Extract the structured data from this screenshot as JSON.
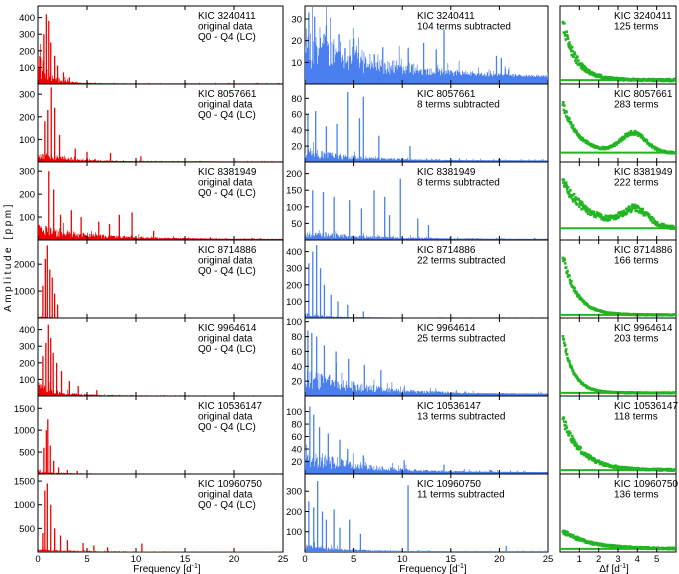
{
  "chart_data": {
    "type": "panel-grid",
    "y_axis_label": "Amplitude [ppm]",
    "column_colors": [
      "#ee0000",
      "#4a7ff0",
      "#22b522"
    ],
    "columns": [
      {
        "name": "original",
        "xlabel": "Frequency [d",
        "xlabel_sup": "-1",
        "xlabel_end": "]",
        "xlim": [
          0,
          25
        ],
        "xticks": [
          0,
          5,
          10,
          15,
          20,
          25
        ],
        "plot_type": "spectrum"
      },
      {
        "name": "prewhitened",
        "xlabel": "Frequency [d",
        "xlabel_sup": "-1",
        "xlabel_end": "]",
        "xlim": [
          0,
          25
        ],
        "xticks": [
          0,
          5,
          10,
          15,
          20,
          25
        ],
        "plot_type": "spectrum"
      },
      {
        "name": "spacing",
        "xlabel": "Δf [d",
        "xlabel_sup": "-1",
        "xlabel_end": "]",
        "xlim": [
          0,
          6
        ],
        "xticks": [
          1,
          2,
          3,
          4,
          5
        ],
        "plot_type": "scatter"
      }
    ],
    "rows": [
      {
        "star": "KIC 3240411",
        "original": {
          "lines": [
            "original data",
            "Q0 - Q4 (LC)"
          ],
          "ylim": [
            0,
            470
          ],
          "yticks": [
            100,
            200,
            300,
            400
          ],
          "peaks": [
            [
              0.6,
              300
            ],
            [
              0.85,
              420
            ],
            [
              1.1,
              380
            ],
            [
              1.3,
              250
            ],
            [
              1.7,
              170
            ],
            [
              2.0,
              110
            ],
            [
              2.6,
              70
            ],
            [
              3.2,
              40
            ]
          ],
          "envelope": {
            "height": 180,
            "decay": 1.2,
            "floor": 4
          }
        },
        "prewhitened": {
          "lines": [
            "104 terms subtracted"
          ],
          "ylim": [
            0,
            36
          ],
          "yticks": [
            10,
            20,
            30
          ],
          "peaks": [
            [
              0.4,
              33
            ],
            [
              1.0,
              31
            ],
            [
              2.2,
              27
            ],
            [
              3.5,
              23
            ],
            [
              5.0,
              21
            ],
            [
              8.0,
              17
            ],
            [
              12.2,
              19
            ],
            [
              13.5,
              16
            ],
            [
              14.3,
              25
            ],
            [
              19.7,
              13
            ],
            [
              20.2,
              12
            ]
          ],
          "envelope": {
            "height": 22,
            "decay": 8,
            "floor": 3
          }
        },
        "spacing": {
          "lines": [
            "125 terms"
          ],
          "profile": {
            "peak": 0.9,
            "decay": 0.7,
            "bump_pos": 3.6,
            "bump_h": 0.0,
            "base": 0.05,
            "scatter": 0.13
          }
        }
      },
      {
        "star": "KIC 8057661",
        "original": {
          "lines": [
            "original data",
            "Q0 - Q4 (LC)"
          ],
          "ylim": [
            0,
            345
          ],
          "yticks": [
            100,
            200,
            300
          ],
          "peaks": [
            [
              0.7,
              180
            ],
            [
              1.0,
              230
            ],
            [
              1.35,
              330
            ],
            [
              1.7,
              240
            ],
            [
              2.2,
              120
            ],
            [
              3.8,
              60
            ],
            [
              5.0,
              45
            ],
            [
              7.4,
              40
            ],
            [
              10.5,
              25
            ]
          ],
          "envelope": {
            "height": 50,
            "decay": 2.5,
            "floor": 3
          }
        },
        "prewhitened": {
          "lines": [
            "8 terms subtracted"
          ],
          "ylim": [
            0,
            98
          ],
          "yticks": [
            20,
            40,
            60,
            80
          ],
          "peaks": [
            [
              0.3,
              60
            ],
            [
              1.1,
              64
            ],
            [
              2.2,
              45
            ],
            [
              3.3,
              48
            ],
            [
              4.4,
              88
            ],
            [
              5.6,
              55
            ],
            [
              6.0,
              82
            ],
            [
              7.6,
              33
            ],
            [
              10.8,
              20
            ]
          ],
          "envelope": {
            "height": 15,
            "decay": 5,
            "floor": 2
          }
        },
        "spacing": {
          "lines": [
            "283 terms"
          ],
          "profile": {
            "peak": 0.75,
            "decay": 0.8,
            "bump_pos": 3.8,
            "bump_h": 0.25,
            "base": 0.12,
            "scatter": 0.06
          }
        }
      },
      {
        "star": "KIC 8381949",
        "original": {
          "lines": [
            "original data",
            "Q0 - Q4 (LC)"
          ],
          "ylim": [
            0,
            340
          ],
          "yticks": [
            100,
            200,
            300
          ],
          "peaks": [
            [
              1.1,
              300
            ],
            [
              1.6,
              220
            ],
            [
              2.3,
              110
            ],
            [
              3.4,
              130
            ],
            [
              4.4,
              100
            ],
            [
              6.2,
              80
            ],
            [
              7.3,
              70
            ],
            [
              8.3,
              110
            ],
            [
              9.6,
              120
            ],
            [
              11.8,
              40
            ]
          ],
          "envelope": {
            "height": 55,
            "decay": 6,
            "floor": 4
          }
        },
        "prewhitened": {
          "lines": [
            "8 terms subtracted"
          ],
          "ylim": [
            0,
            235
          ],
          "yticks": [
            50,
            100,
            150,
            200
          ],
          "peaks": [
            [
              0.8,
              150
            ],
            [
              1.9,
              145
            ],
            [
              3.0,
              130
            ],
            [
              4.6,
              120
            ],
            [
              5.8,
              95
            ],
            [
              7.1,
              150
            ],
            [
              8.2,
              130
            ],
            [
              8.7,
              75
            ],
            [
              9.8,
              185
            ],
            [
              11.6,
              65
            ],
            [
              12.7,
              45
            ]
          ],
          "envelope": {
            "height": 22,
            "decay": 7,
            "floor": 3
          }
        },
        "spacing": {
          "lines": [
            "222 terms"
          ],
          "profile": {
            "peak": 0.65,
            "decay": 1.4,
            "bump_pos": 3.9,
            "bump_h": 0.22,
            "base": 0.15,
            "scatter": 0.1
          }
        }
      },
      {
        "star": "KIC 8714886",
        "original": {
          "lines": [
            "original data",
            "Q0 - Q4 (LC)"
          ],
          "ylim": [
            0,
            2900
          ],
          "yticks": [
            1000,
            2000
          ],
          "peaks": [
            [
              0.5,
              1200
            ],
            [
              0.75,
              2200
            ],
            [
              0.95,
              2700
            ],
            [
              1.2,
              1800
            ],
            [
              1.45,
              1500
            ],
            [
              1.7,
              900
            ],
            [
              2.0,
              500
            ]
          ],
          "envelope": {
            "height": 80,
            "decay": 1.0,
            "floor": 10
          }
        },
        "prewhitened": {
          "lines": [
            "22 terms subtracted"
          ],
          "ylim": [
            0,
            470
          ],
          "yticks": [
            100,
            200,
            300,
            400
          ],
          "peaks": [
            [
              0.4,
              330
            ],
            [
              0.8,
              400
            ],
            [
              1.2,
              440
            ],
            [
              1.6,
              300
            ],
            [
              2.0,
              200
            ],
            [
              2.7,
              140
            ],
            [
              3.4,
              100
            ],
            [
              4.4,
              80
            ],
            [
              6.0,
              40
            ]
          ],
          "envelope": {
            "height": 30,
            "decay": 2.0,
            "floor": 3
          }
        },
        "spacing": {
          "lines": [
            "166 terms"
          ],
          "profile": {
            "peak": 0.95,
            "decay": 0.7,
            "bump_pos": 3.5,
            "bump_h": 0.0,
            "base": 0.04,
            "scatter": 0.06
          }
        }
      },
      {
        "star": "KIC 9964614",
        "original": {
          "lines": [
            "original data",
            "Q0 - Q4 (LC)"
          ],
          "ylim": [
            0,
            470
          ],
          "yticks": [
            100,
            200,
            300,
            400
          ],
          "peaks": [
            [
              0.5,
              240
            ],
            [
              0.8,
              320
            ],
            [
              1.05,
              430
            ],
            [
              1.3,
              350
            ],
            [
              1.55,
              260
            ],
            [
              1.9,
              200
            ],
            [
              2.4,
              150
            ],
            [
              3.2,
              90
            ],
            [
              4.1,
              60
            ],
            [
              6.0,
              35
            ]
          ],
          "envelope": {
            "height": 70,
            "decay": 2.2,
            "floor": 3
          }
        },
        "prewhitened": {
          "lines": [
            "25 terms subtracted"
          ],
          "ylim": [
            0,
            105
          ],
          "yticks": [
            20,
            40,
            60,
            80,
            100
          ],
          "peaks": [
            [
              0.3,
              88
            ],
            [
              0.7,
              85
            ],
            [
              1.2,
              80
            ],
            [
              2.0,
              68
            ],
            [
              3.2,
              60
            ],
            [
              4.5,
              50
            ],
            [
              6.1,
              42
            ],
            [
              7.8,
              35
            ]
          ],
          "envelope": {
            "height": 35,
            "decay": 5.5,
            "floor": 3
          }
        },
        "spacing": {
          "lines": [
            "203 terms"
          ],
          "profile": {
            "peak": 0.95,
            "decay": 0.55,
            "bump_pos": 3.5,
            "bump_h": 0.0,
            "base": 0.04,
            "scatter": 0.05
          }
        }
      },
      {
        "star": "KIC 10536147",
        "original": {
          "lines": [
            "original data",
            "Q0 - Q4 (LC)"
          ],
          "ylim": [
            0,
            1780
          ],
          "yticks": [
            500,
            1000,
            1500
          ],
          "peaks": [
            [
              0.6,
              600
            ],
            [
              0.85,
              1000
            ],
            [
              1.0,
              1250
            ],
            [
              1.25,
              650
            ],
            [
              1.6,
              300
            ],
            [
              2.1,
              150
            ],
            [
              3.0,
              90
            ],
            [
              4.0,
              70
            ]
          ],
          "envelope": {
            "height": 60,
            "decay": 2.0,
            "floor": 8
          }
        },
        "prewhitened": {
          "lines": [
            "13 terms subtracted"
          ],
          "ylim": [
            0,
            125
          ],
          "yticks": [
            20,
            40,
            60,
            80,
            100
          ],
          "peaks": [
            [
              0.5,
              108
            ],
            [
              0.9,
              95
            ],
            [
              1.5,
              75
            ],
            [
              2.4,
              65
            ],
            [
              3.6,
              55
            ],
            [
              4.4,
              40
            ],
            [
              6.0,
              30
            ],
            [
              10.2,
              22
            ],
            [
              14.3,
              15
            ]
          ],
          "envelope": {
            "height": 40,
            "decay": 5,
            "floor": 3
          }
        },
        "spacing": {
          "lines": [
            "118 terms"
          ],
          "profile": {
            "peak": 0.75,
            "decay": 1.0,
            "bump_pos": 3.5,
            "bump_h": 0.0,
            "base": 0.05,
            "scatter": 0.1
          }
        }
      },
      {
        "star": "KIC 10960750",
        "original": {
          "lines": [
            "original data",
            "Q0 - Q4 (LC)"
          ],
          "ylim": [
            0,
            1650
          ],
          "yticks": [
            500,
            1000,
            1500
          ],
          "peaks": [
            [
              0.5,
              400
            ],
            [
              0.7,
              1300
            ],
            [
              0.95,
              1450
            ],
            [
              1.3,
              1000
            ],
            [
              1.7,
              500
            ],
            [
              2.3,
              350
            ],
            [
              3.0,
              250
            ],
            [
              4.6,
              190
            ],
            [
              5.7,
              140
            ],
            [
              7.1,
              100
            ],
            [
              10.6,
              180
            ]
          ],
          "envelope": {
            "height": 50,
            "decay": 4,
            "floor": 8
          }
        },
        "prewhitened": {
          "lines": [
            "11 terms subtracted"
          ],
          "ylim": [
            0,
            385
          ],
          "yticks": [
            100,
            200,
            300
          ],
          "peaks": [
            [
              0.4,
              250
            ],
            [
              0.9,
              220
            ],
            [
              1.3,
              350
            ],
            [
              1.8,
              200
            ],
            [
              2.2,
              160
            ],
            [
              3.0,
              210
            ],
            [
              3.6,
              120
            ],
            [
              4.6,
              160
            ],
            [
              5.7,
              90
            ],
            [
              10.6,
              330
            ],
            [
              20.7,
              30
            ]
          ],
          "envelope": {
            "height": 30,
            "decay": 4,
            "floor": 4
          }
        },
        "spacing": {
          "lines": [
            "136 terms"
          ],
          "profile": {
            "peak": 0.25,
            "decay": 1.4,
            "bump_pos": 3.5,
            "bump_h": 0.0,
            "base": 0.04,
            "scatter": 0.1
          }
        }
      }
    ]
  }
}
